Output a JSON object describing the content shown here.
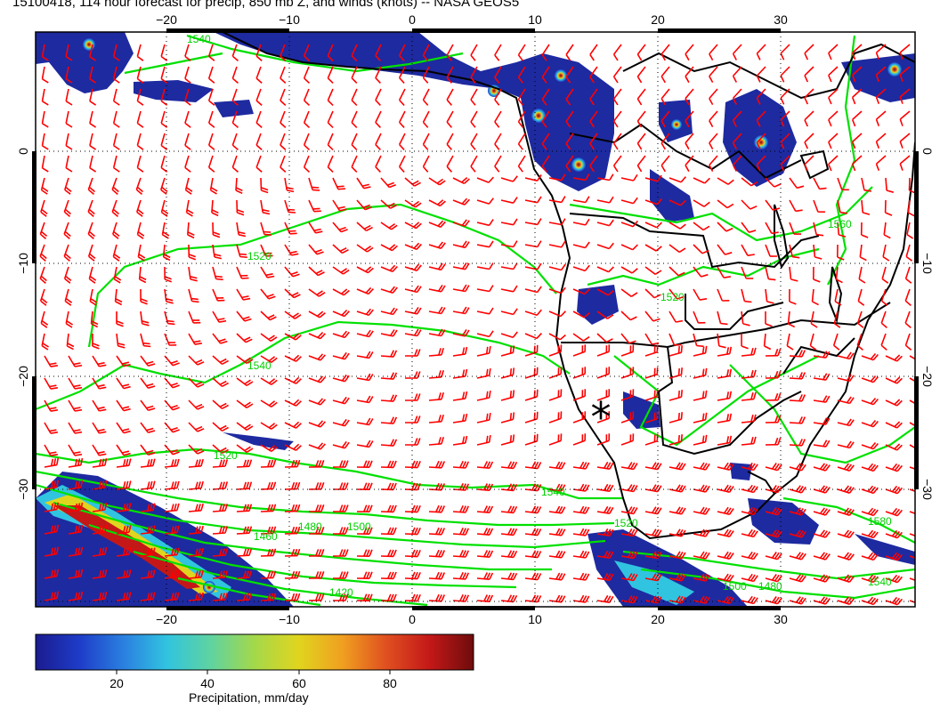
{
  "title": "15100418, 114 hour forecast for precip, 850 mb Z, and winds (knots) -- NASA GEOS5",
  "lon_ticks": [
    "−20",
    "−10",
    "0",
    "10",
    "20",
    "30"
  ],
  "lat_ticks": [
    "0",
    "−10",
    "−20",
    "−30"
  ],
  "contour_labels": [
    "1520",
    "1540",
    "1520",
    "1500",
    "1480",
    "1460",
    "1420",
    "1540",
    "1520",
    "1500",
    "1480",
    "1540",
    "1520",
    "1580",
    "1540",
    "1560"
  ],
  "colorbar": {
    "label": "Precipitation, mm/day",
    "ticks": [
      "20",
      "40",
      "60",
      "80"
    ],
    "stops": [
      "#1b1b8f",
      "#1e3cc8",
      "#2a7fe0",
      "#31c4e0",
      "#5fd3a0",
      "#a4d84a",
      "#e0d51e",
      "#f0a020",
      "#e05020",
      "#c41818",
      "#6e0c0c"
    ]
  },
  "colors": {
    "precip_low": "#1e2aa0",
    "contour": "#00e000",
    "wind_barb": "#ff0000",
    "coast": "#000000",
    "grid": "#000000"
  },
  "marker": "*"
}
